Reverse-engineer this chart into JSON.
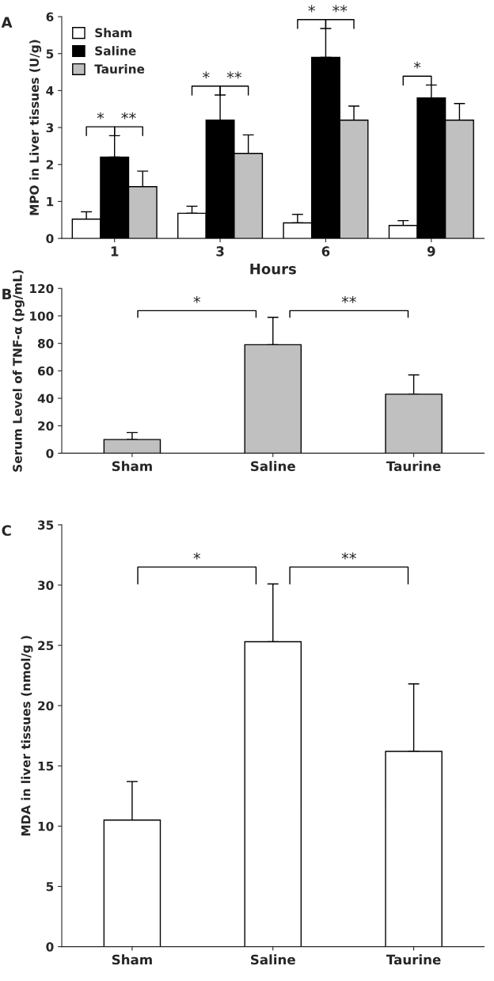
{
  "chart_data": [
    {
      "type": "bar",
      "xlabel": "Hours",
      "ylabel": "MPO in Liver tissues (U/g)",
      "categories": [
        "1",
        "3",
        "6",
        "9"
      ],
      "series": [
        {
          "name": "Sham",
          "color": "#ffffff",
          "values": [
            0.52,
            0.68,
            0.42,
            0.35
          ],
          "errors": [
            [
              0.52,
              0.72
            ],
            [
              0.68,
              0.87
            ],
            [
              0.42,
              0.65
            ],
            [
              0.35,
              0.48
            ]
          ]
        },
        {
          "name": "Saline",
          "color": "#000000",
          "values": [
            2.2,
            3.2,
            4.9,
            3.8
          ],
          "errors": [
            [
              2.2,
              2.78
            ],
            [
              3.2,
              3.88
            ],
            [
              4.9,
              5.68
            ],
            [
              3.8,
              4.15
            ]
          ]
        },
        {
          "name": "Taurine",
          "color": "#c0c0c0",
          "values": [
            1.4,
            2.3,
            3.2,
            3.2
          ],
          "errors": [
            [
              1.4,
              1.82
            ],
            [
              2.3,
              2.8
            ],
            [
              3.2,
              3.58
            ],
            [
              3.2,
              3.65
            ]
          ]
        }
      ],
      "ylim": [
        0,
        6
      ],
      "yticks": [
        0,
        1,
        2,
        3,
        4,
        5,
        6
      ],
      "grid": false,
      "legend": "top left",
      "annotations": [
        "A",
        "*",
        "**",
        "*",
        "**",
        "*",
        "**",
        "*"
      ]
    },
    {
      "type": "bar",
      "ylabel": "Serum Level of TNF-α (pg/mL)",
      "categories": [
        "Sham",
        "Saline",
        "Taurine"
      ],
      "series": [
        {
          "color": "#c0c0c0",
          "values": [
            10,
            79,
            43
          ],
          "errors": [
            [
              10,
              15
            ],
            [
              79,
              99
            ],
            [
              43,
              57
            ]
          ]
        }
      ],
      "ylim": [
        0,
        120
      ],
      "yticks": [
        0,
        20,
        40,
        60,
        80,
        100,
        120
      ],
      "grid": false,
      "legend": false,
      "annotations": [
        "B",
        "*",
        "**"
      ]
    },
    {
      "type": "bar",
      "ylabel": "MDA in liver tissues (nmol/g )",
      "categories": [
        "Sham",
        "Saline",
        "Taurine"
      ],
      "series": [
        {
          "color": "#ffffff",
          "values": [
            10.5,
            25.3,
            16.2
          ],
          "errors": [
            [
              10.5,
              13.7
            ],
            [
              25.3,
              30.1
            ],
            [
              16.2,
              21.8
            ]
          ]
        }
      ],
      "ylim": [
        0,
        35
      ],
      "yticks": [
        0,
        5,
        10,
        15,
        20,
        25,
        30,
        35
      ],
      "grid": false,
      "legend": false,
      "annotations": [
        "C",
        "*",
        "**"
      ]
    }
  ]
}
